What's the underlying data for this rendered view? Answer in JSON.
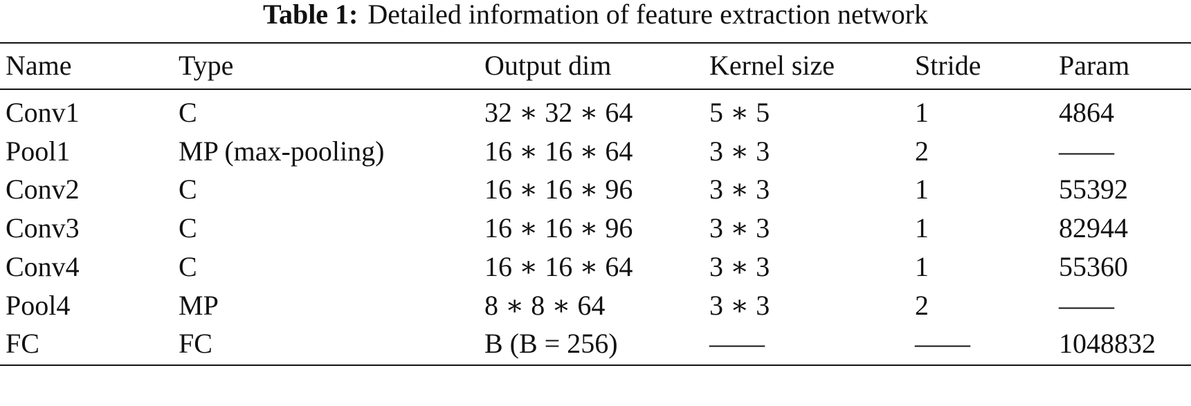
{
  "table": {
    "label": "Table 1:",
    "caption": "Detailed information of feature extraction network",
    "header": [
      "Name",
      "Type",
      "Output dim",
      "Kernel size",
      "Stride",
      "Param"
    ],
    "rows": [
      [
        "Conv1",
        "C",
        "32 ∗ 32 ∗ 64",
        "5 ∗ 5",
        "1",
        "4864"
      ],
      [
        "Pool1",
        "MP (max-pooling)",
        "16 ∗ 16 ∗ 64",
        "3 ∗ 3",
        "2",
        "——"
      ],
      [
        "Conv2",
        "C",
        "16 ∗ 16 ∗ 96",
        "3 ∗ 3",
        "1",
        "55392"
      ],
      [
        "Conv3",
        "C",
        "16 ∗ 16 ∗ 96",
        "3 ∗ 3",
        "1",
        "82944"
      ],
      [
        "Conv4",
        "C",
        "16 ∗ 16 ∗ 64",
        "3 ∗ 3",
        "1",
        "55360"
      ],
      [
        "Pool4",
        "MP",
        "8 ∗ 8 ∗ 64",
        "3 ∗ 3",
        "2",
        "——"
      ],
      [
        "FC",
        "FC",
        "B (B = 256)",
        "——",
        "——",
        "1048832"
      ]
    ]
  }
}
